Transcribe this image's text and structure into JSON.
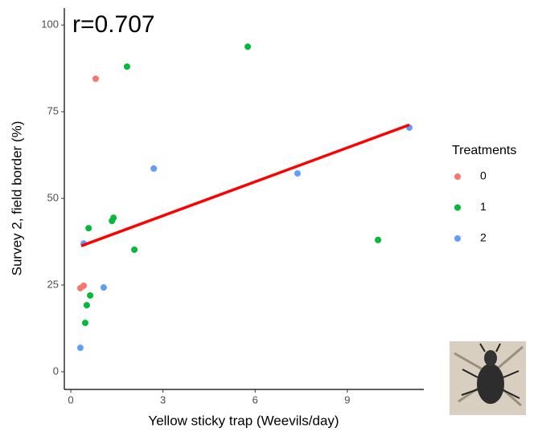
{
  "chart_data": {
    "type": "scatter",
    "annotation": "r=0.707",
    "x_label": "Yellow sticky trap (Weevils/day)",
    "y_label": "Survey 2, field border (%)",
    "legend_title": "Treatments",
    "xlim": [
      -0.21,
      11.49
    ],
    "ylim": [
      -5.1,
      104.9
    ],
    "xticks": [
      0,
      3,
      6,
      9
    ],
    "yticks": [
      0,
      25,
      50,
      75,
      100
    ],
    "grid": false,
    "series": [
      {
        "name": "0",
        "color": "#F8766D",
        "x": [
          0.81,
          0.31,
          0.42
        ],
        "y": [
          84.5,
          24.1,
          24.8
        ]
      },
      {
        "name": "1",
        "color": "#00BA38",
        "x": [
          1.83,
          5.76,
          0.58,
          1.39,
          1.34,
          2.07,
          10.0,
          0.63,
          0.52,
          0.47
        ],
        "y": [
          88,
          93.75,
          41.4,
          44.4,
          43.5,
          35.2,
          38.0,
          22,
          19.2,
          14.1
        ]
      },
      {
        "name": "2",
        "color": "#619CFF",
        "x": [
          0.42,
          2.7,
          7.38,
          11.02,
          1.07,
          0.31
        ],
        "y": [
          37,
          58.6,
          57.2,
          70.4,
          24.3,
          6.9
        ]
      }
    ],
    "trend_line": {
      "x": [
        0.34,
        11.02
      ],
      "y": [
        36.3,
        71.2
      ],
      "color": "#FF0000"
    }
  }
}
